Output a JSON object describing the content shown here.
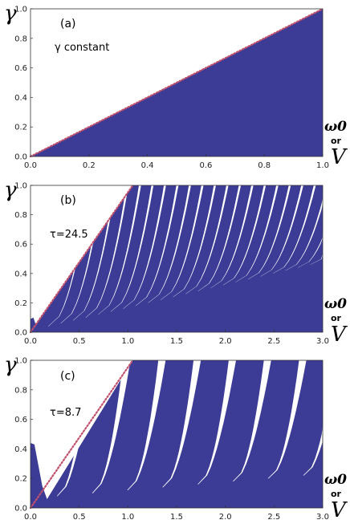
{
  "colors": {
    "fill": "#3c3c96",
    "dotted_line": "#c0506c"
  },
  "chart_data": [
    {
      "type": "area",
      "panel_label": "(a)",
      "annotation": "γ constant",
      "ylabel": "γ",
      "xlabel_parts": [
        "ω0",
        "or",
        "V"
      ],
      "xlim": [
        0,
        1.0
      ],
      "ylim": [
        0,
        1.0
      ],
      "x_ticks": [
        "0.0",
        "0.2",
        "0.4",
        "0.6",
        "0.8",
        "1.0"
      ],
      "y_ticks": [
        "0.0",
        "0.2",
        "0.4",
        "0.6",
        "0.8",
        "1.0"
      ],
      "boundary_line": {
        "x": [
          0,
          1.0
        ],
        "y": [
          0,
          1.0
        ],
        "style": "dotted"
      },
      "region": "filled below the line y = x"
    },
    {
      "type": "area",
      "panel_label": "(b)",
      "annotation": "τ=24.5",
      "ylabel": "γ",
      "xlabel_parts": [
        "ω0",
        "or",
        "V"
      ],
      "xlim": [
        0,
        3.0
      ],
      "ylim": [
        0,
        1.0
      ],
      "x_ticks": [
        "0.0",
        "0.5",
        "1.0",
        "1.5",
        "2.0",
        "2.5",
        "3.0"
      ],
      "y_ticks": [
        "0.0",
        "0.2",
        "0.4",
        "0.6",
        "0.8",
        "1.0"
      ],
      "boundary_line": {
        "x": [
          0,
          1.05
        ],
        "y": [
          0,
          1.0
        ],
        "style": "dotted"
      },
      "gap_period": 0.1282
    },
    {
      "type": "area",
      "panel_label": "(c)",
      "annotation": "τ=8.7",
      "ylabel": "γ",
      "xlabel_parts": [
        "ω0",
        "or",
        "V"
      ],
      "xlim": [
        0,
        3.0
      ],
      "ylim": [
        0,
        1.0
      ],
      "x_ticks": [
        "0.0",
        "0.5",
        "1.0",
        "1.5",
        "2.0",
        "2.5",
        "3.0"
      ],
      "y_ticks": [
        "0.0",
        "0.2",
        "0.4",
        "0.6",
        "0.8",
        "1.0"
      ],
      "boundary_line": {
        "x": [
          0,
          1.05
        ],
        "y": [
          0,
          1.0
        ],
        "style": "dotted"
      },
      "gap_period": 0.3612
    }
  ]
}
